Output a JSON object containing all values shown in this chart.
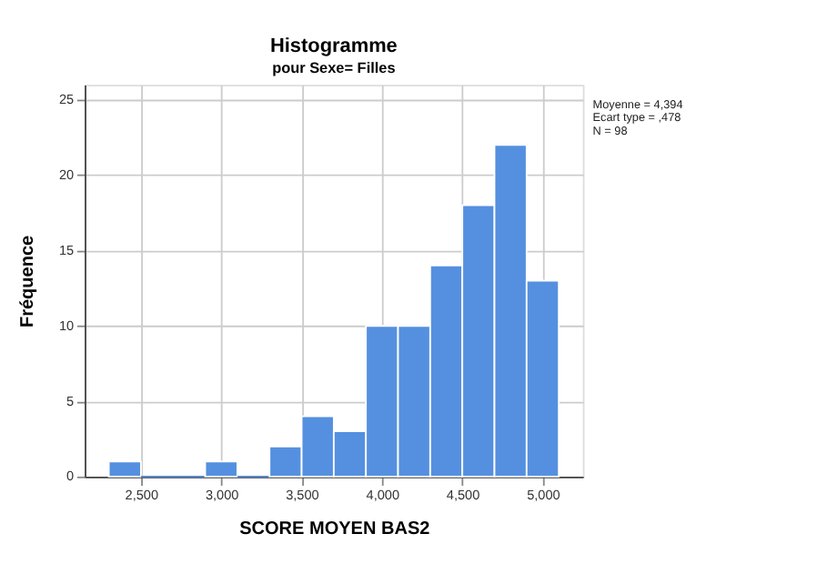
{
  "chart_data": {
    "type": "histogram",
    "title": "Histogramme",
    "subtitle": "pour Sexe= Filles",
    "xlabel": "SCORE MOYEN BAS2",
    "ylabel": "Fréquence",
    "bins": [
      2300,
      2500,
      2700,
      2900,
      3100,
      3300,
      3500,
      3700,
      3900,
      4100,
      4300,
      4500,
      4700,
      4900,
      5100
    ],
    "values": [
      1,
      0,
      0,
      1,
      0,
      2,
      4,
      3,
      10,
      10,
      14,
      18,
      22,
      13
    ],
    "color": "#5590e0",
    "xlim": [
      2150,
      5250
    ],
    "ylim": [
      0,
      26
    ],
    "xticks": [
      {
        "value": 2500,
        "label": "2,500"
      },
      {
        "value": 3000,
        "label": "3,000"
      },
      {
        "value": 3500,
        "label": "3,500"
      },
      {
        "value": 4000,
        "label": "4,000"
      },
      {
        "value": 4500,
        "label": "4,500"
      },
      {
        "value": 5000,
        "label": "5,000"
      }
    ],
    "yticks": [
      0,
      5,
      10,
      15,
      20,
      25
    ],
    "grid": true,
    "annotations": [
      "Moyenne = 4,394",
      "Ecart type = ,478",
      "N = 98"
    ]
  }
}
